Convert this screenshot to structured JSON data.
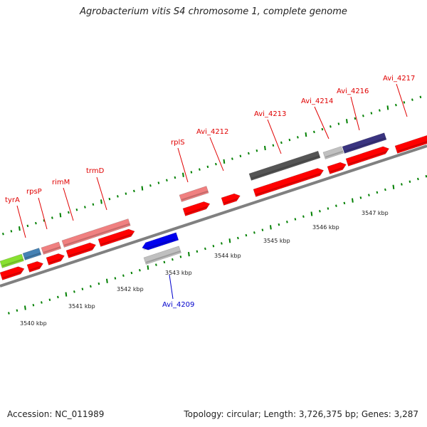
{
  "title": "Agrobacterium vitis S4 chromosome 1, complete genome",
  "footer": {
    "accession": "Accession: NC_011989",
    "stats": "Topology: circular; Length: 3,726,375 bp; Genes: 3,287"
  },
  "colors": {
    "cds": "#ff0000",
    "gene_light_red": "#f08080",
    "gene_dark_gray": "#555555",
    "gene_light_gray": "#c0c0c0",
    "gene_navy": "#3a3480",
    "gene_blue": "#0000ee",
    "gene_green": "#88e030",
    "gene_steelblue": "#4682b4",
    "tick": "#008000",
    "label_red": "#e00000",
    "label_blue": "#0000cc"
  },
  "gene_labels": [
    {
      "text": "tyrA",
      "color": "red"
    },
    {
      "text": "rpsP",
      "color": "red"
    },
    {
      "text": "rimM",
      "color": "red"
    },
    {
      "text": "trmD",
      "color": "red"
    },
    {
      "text": "rplS",
      "color": "red"
    },
    {
      "text": "Avi_4212",
      "color": "red"
    },
    {
      "text": "Avi_4213",
      "color": "red"
    },
    {
      "text": "Avi_4214",
      "color": "red"
    },
    {
      "text": "Avi_4216",
      "color": "red"
    },
    {
      "text": "Avi_4217",
      "color": "red"
    },
    {
      "text": "Avi_4209",
      "color": "blue"
    }
  ],
  "scale_labels": [
    "3540 kbp",
    "3541 kbp",
    "3542 kbp",
    "3543 kbp",
    "3544 kbp",
    "3545 kbp",
    "3546 kbp",
    "3547 kbp"
  ]
}
